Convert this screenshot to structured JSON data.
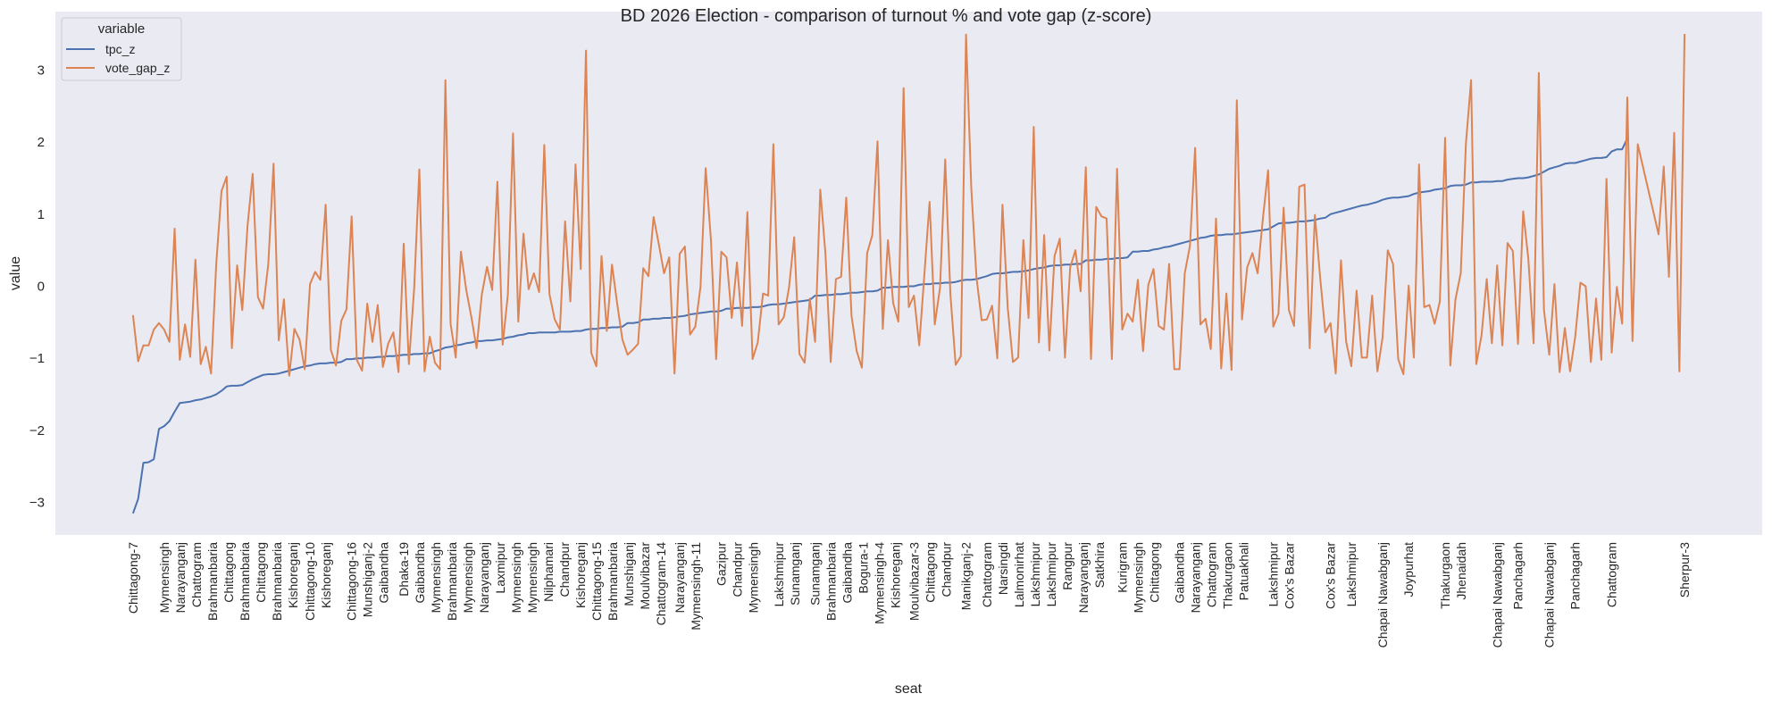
{
  "chart_data": {
    "type": "line",
    "title": "BD 2026 Election - comparison of turnout % and vote gap (z-score)",
    "xlabel": "seat",
    "ylabel": "value",
    "ylim": [
      -3.45,
      3.81
    ],
    "yticks": [
      3,
      2,
      1,
      0,
      -1,
      -2,
      -3
    ],
    "grid": false,
    "background": "#eaeaf2",
    "legend": {
      "title": "variable",
      "placement": "top-left"
    },
    "x_tick_labels": [
      {
        "i": 0,
        "label": "Chittagong-7"
      },
      {
        "i": 6,
        "label": "Mymensingh"
      },
      {
        "i": 8,
        "label": "Narayanganj"
      },
      {
        "i": 12,
        "label": "Chattogram"
      },
      {
        "i": 15,
        "label": "Brahmanbaria"
      },
      {
        "i": 18,
        "label": "Chittagong"
      },
      {
        "i": 21,
        "label": "Brahmanbaria"
      },
      {
        "i": 23,
        "label": "Chittagong"
      },
      {
        "i": 27,
        "label": "Brahmanbaria"
      },
      {
        "i": 29,
        "label": "Kishoreganj"
      },
      {
        "i": 34,
        "label": "Chittagong-10"
      },
      {
        "i": 37,
        "label": "Kishoreganj"
      },
      {
        "i": 42,
        "label": "Chittagong-16"
      },
      {
        "i": 45,
        "label": "Munshiganj-2"
      },
      {
        "i": 48,
        "label": "Gaibandha"
      },
      {
        "i": 52,
        "label": "Dhaka-19"
      },
      {
        "i": 55,
        "label": "Gaibandha"
      },
      {
        "i": 58,
        "label": "Mymensingh"
      },
      {
        "i": 60,
        "label": "Brahmanbaria"
      },
      {
        "i": 63,
        "label": "Mymensingh"
      },
      {
        "i": 66,
        "label": "Narayanganj"
      },
      {
        "i": 70,
        "label": "Laxmipur"
      },
      {
        "i": 72,
        "label": "Mymensingh"
      },
      {
        "i": 74,
        "label": "Mymensingh"
      },
      {
        "i": 75,
        "label": "Nilphamari"
      },
      {
        "i": 79,
        "label": "Chandpur"
      },
      {
        "i": 83,
        "label": "Kishoreganj"
      },
      {
        "i": 85,
        "label": "Chittagong-15"
      },
      {
        "i": 91,
        "label": "Brahmanbaria"
      },
      {
        "i": 94,
        "label": "Munshiganj"
      },
      {
        "i": 97,
        "label": "Moulvibazar"
      },
      {
        "i": 100,
        "label": "Chattogram-14"
      },
      {
        "i": 105,
        "label": "Narayanganj"
      },
      {
        "i": 108,
        "label": "Mymensingh-11"
      },
      {
        "i": 113,
        "label": "Gazipur"
      },
      {
        "i": 116,
        "label": "Chandpur"
      },
      {
        "i": 119,
        "label": "Mymensingh"
      },
      {
        "i": 124,
        "label": "Lakshmipur"
      },
      {
        "i": 127,
        "label": "Sunamganj"
      },
      {
        "i": 131,
        "label": "Sunamganj"
      },
      {
        "i": 134,
        "label": "Brahmanbaria"
      },
      {
        "i": 137,
        "label": "Gaibandha"
      },
      {
        "i": 139,
        "label": "Bogura-1"
      },
      {
        "i": 142,
        "label": "Mymensingh-4"
      },
      {
        "i": 146,
        "label": "Kishoreganj"
      },
      {
        "i": 150,
        "label": "Moulvibazar-3"
      },
      {
        "i": 153,
        "label": "Chittagong"
      },
      {
        "i": 156,
        "label": "Chandpur"
      },
      {
        "i": 160,
        "label": "Manikganj-2"
      },
      {
        "i": 164,
        "label": "Chattogram"
      },
      {
        "i": 167,
        "label": "Narsingdi"
      },
      {
        "i": 170,
        "label": "Lalmonirhat"
      },
      {
        "i": 173,
        "label": "Lakshmipur"
      },
      {
        "i": 175,
        "label": "Lakshmipur"
      },
      {
        "i": 178,
        "label": "Rangpur"
      },
      {
        "i": 181,
        "label": "Narayanganj"
      },
      {
        "i": 185,
        "label": "Satkhira"
      },
      {
        "i": 190,
        "label": "Kurigram"
      },
      {
        "i": 192,
        "label": "Mymensingh"
      },
      {
        "i": 195,
        "label": "Chittagong"
      },
      {
        "i": 201,
        "label": "Gaibandha"
      },
      {
        "i": 204,
        "label": "Narayanganj"
      },
      {
        "i": 207,
        "label": "Chattogram"
      },
      {
        "i": 210,
        "label": "Thakurgaon"
      },
      {
        "i": 212,
        "label": "Patuakhali"
      },
      {
        "i": 219,
        "label": "Lakshmipur"
      },
      {
        "i": 222,
        "label": "Cox's Bazar"
      },
      {
        "i": 230,
        "label": "Cox's Bazar"
      },
      {
        "i": 234,
        "label": "Lakshmipur"
      },
      {
        "i": 240,
        "label": "Chapai Nawabganj"
      },
      {
        "i": 245,
        "label": "Joypurhat"
      },
      {
        "i": 252,
        "label": "Thakurgaon"
      },
      {
        "i": 255,
        "label": "Jhenaidah"
      },
      {
        "i": 262,
        "label": "Chapai Nawabganj"
      },
      {
        "i": 266,
        "label": "Panchagarh"
      },
      {
        "i": 272,
        "label": "Chapai Nawabganj"
      },
      {
        "i": 277,
        "label": "Panchagarh"
      },
      {
        "i": 284,
        "label": "Chattogram"
      },
      {
        "i": 298,
        "label": "Sherpur-3"
      }
    ],
    "series": [
      {
        "name": "tpc_z",
        "color": "#4c72b0",
        "values": [
          -3.15,
          -2.95,
          -2.45,
          -2.44,
          -2.4,
          -1.98,
          -1.94,
          -1.87,
          -1.74,
          -1.62,
          -1.61,
          -1.6,
          -1.58,
          -1.57,
          -1.55,
          -1.53,
          -1.5,
          -1.45,
          -1.39,
          -1.38,
          -1.38,
          -1.37,
          -1.33,
          -1.29,
          -1.26,
          -1.23,
          -1.22,
          -1.22,
          -1.21,
          -1.19,
          -1.17,
          -1.15,
          -1.13,
          -1.11,
          -1.1,
          -1.08,
          -1.07,
          -1.07,
          -1.06,
          -1.06,
          -1.05,
          -1.01,
          -1.01,
          -1.0,
          -1.0,
          -0.99,
          -0.99,
          -0.98,
          -0.98,
          -0.97,
          -0.97,
          -0.96,
          -0.95,
          -0.95,
          -0.94,
          -0.94,
          -0.93,
          -0.93,
          -0.9,
          -0.88,
          -0.85,
          -0.84,
          -0.82,
          -0.81,
          -0.79,
          -0.78,
          -0.76,
          -0.76,
          -0.75,
          -0.75,
          -0.74,
          -0.73,
          -0.71,
          -0.7,
          -0.68,
          -0.67,
          -0.65,
          -0.65,
          -0.64,
          -0.64,
          -0.64,
          -0.64,
          -0.63,
          -0.63,
          -0.63,
          -0.62,
          -0.62,
          -0.6,
          -0.59,
          -0.59,
          -0.58,
          -0.58,
          -0.57,
          -0.57,
          -0.56,
          -0.51,
          -0.51,
          -0.5,
          -0.46,
          -0.46,
          -0.45,
          -0.45,
          -0.44,
          -0.44,
          -0.43,
          -0.42,
          -0.41,
          -0.39,
          -0.38,
          -0.37,
          -0.36,
          -0.35,
          -0.35,
          -0.34,
          -0.31,
          -0.31,
          -0.3,
          -0.3,
          -0.3,
          -0.29,
          -0.29,
          -0.28,
          -0.26,
          -0.25,
          -0.25,
          -0.24,
          -0.23,
          -0.22,
          -0.21,
          -0.2,
          -0.19,
          -0.13,
          -0.13,
          -0.12,
          -0.12,
          -0.11,
          -0.11,
          -0.1,
          -0.09,
          -0.09,
          -0.08,
          -0.07,
          -0.07,
          -0.06,
          -0.02,
          -0.02,
          -0.01,
          -0.01,
          -0.01,
          0.0,
          0.0,
          0.02,
          0.03,
          0.03,
          0.04,
          0.04,
          0.05,
          0.05,
          0.06,
          0.08,
          0.09,
          0.09,
          0.1,
          0.12,
          0.14,
          0.17,
          0.18,
          0.18,
          0.19,
          0.2,
          0.2,
          0.21,
          0.22,
          0.24,
          0.25,
          0.26,
          0.28,
          0.29,
          0.29,
          0.3,
          0.3,
          0.31,
          0.31,
          0.36,
          0.36,
          0.37,
          0.37,
          0.38,
          0.38,
          0.39,
          0.39,
          0.4,
          0.48,
          0.48,
          0.49,
          0.49,
          0.51,
          0.52,
          0.54,
          0.55,
          0.57,
          0.59,
          0.61,
          0.63,
          0.65,
          0.67,
          0.68,
          0.7,
          0.71,
          0.71,
          0.72,
          0.72,
          0.73,
          0.74,
          0.75,
          0.76,
          0.77,
          0.78,
          0.79,
          0.83,
          0.87,
          0.88,
          0.88,
          0.89,
          0.9,
          0.9,
          0.91,
          0.92,
          0.94,
          0.95,
          1.0,
          1.02,
          1.04,
          1.06,
          1.08,
          1.1,
          1.12,
          1.13,
          1.15,
          1.17,
          1.2,
          1.22,
          1.23,
          1.23,
          1.24,
          1.25,
          1.28,
          1.3,
          1.31,
          1.32,
          1.34,
          1.35,
          1.36,
          1.39,
          1.4,
          1.4,
          1.41,
          1.44,
          1.44,
          1.45,
          1.45,
          1.45,
          1.46,
          1.46,
          1.48,
          1.49,
          1.5,
          1.5,
          1.51,
          1.53,
          1.55,
          1.59,
          1.63,
          1.65,
          1.67,
          1.7,
          1.71,
          1.71,
          1.73,
          1.75,
          1.77,
          1.78,
          1.78,
          1.79,
          1.87,
          1.9,
          1.9,
          2.05,
          null,
          null,
          null,
          null,
          null,
          null,
          null,
          null,
          null,
          null,
          null
        ]
      },
      {
        "name": "vote_gap_z",
        "color": "#dd8452",
        "values": [
          -0.4,
          -1.04,
          -0.82,
          -0.82,
          -0.6,
          -0.51,
          -0.6,
          -0.77,
          0.8,
          -1.02,
          -0.53,
          -0.98,
          0.37,
          -1.08,
          -0.84,
          -1.21,
          0.31,
          1.32,
          1.52,
          -0.86,
          0.29,
          -0.33,
          0.83,
          1.56,
          -0.15,
          -0.31,
          0.31,
          1.7,
          -0.75,
          -0.18,
          -1.24,
          -0.59,
          -0.74,
          -1.15,
          0.03,
          0.2,
          0.09,
          1.13,
          -0.88,
          -1.1,
          -0.48,
          -0.32,
          0.97,
          -1.02,
          -1.17,
          -0.24,
          -0.77,
          -0.26,
          -1.12,
          -0.8,
          -0.64,
          -1.19,
          0.59,
          -1.08,
          -0.03,
          1.62,
          -1.18,
          -0.7,
          -1.06,
          -1.15,
          2.86,
          -0.52,
          -0.99,
          0.48,
          -0.05,
          -0.43,
          -0.86,
          -0.11,
          0.27,
          -0.05,
          1.45,
          -0.81,
          -0.12,
          2.12,
          -0.49,
          0.73,
          -0.04,
          0.18,
          -0.08,
          1.96,
          -0.11,
          -0.46,
          -0.6,
          0.9,
          -0.21,
          1.69,
          0.24,
          3.27,
          -0.92,
          -1.11,
          0.42,
          -0.62,
          0.3,
          -0.24,
          -0.74,
          -0.95,
          -0.88,
          -0.8,
          0.25,
          0.14,
          0.96,
          0.58,
          0.18,
          0.4,
          -1.21,
          0.45,
          0.55,
          -0.67,
          -0.56,
          -0.01,
          1.64,
          0.64,
          -1.01,
          0.48,
          0.4,
          -0.44,
          0.33,
          -0.55,
          1.03,
          -1.01,
          -0.78,
          -0.1,
          -0.13,
          1.97,
          -0.53,
          -0.43,
          -0.02,
          0.68,
          -0.94,
          -1.06,
          -0.17,
          -0.77,
          1.34,
          0.45,
          -1.05,
          0.1,
          0.13,
          1.23,
          -0.41,
          -0.9,
          -1.13,
          0.46,
          0.71,
          2.01,
          -0.59,
          0.64,
          -0.23,
          -0.49,
          2.75,
          -0.29,
          -0.13,
          -0.82,
          0.17,
          1.17,
          -0.53,
          -0.02,
          1.76,
          -0.11,
          -1.09,
          -0.97,
          3.49,
          1.36,
          0.12,
          -0.47,
          -0.46,
          -0.27,
          -1.0,
          1.13,
          -0.3,
          -1.05,
          -0.99,
          0.64,
          -0.44,
          2.21,
          -0.78,
          0.71,
          -0.89,
          0.42,
          0.66,
          -0.99,
          0.26,
          0.5,
          -0.07,
          1.65,
          -1.01,
          1.1,
          0.97,
          0.94,
          -1.01,
          1.63,
          -0.6,
          -0.38,
          -0.49,
          0.09,
          -0.9,
          0.02,
          0.24,
          -0.55,
          -0.6,
          0.31,
          -1.15,
          -1.15,
          0.18,
          0.56,
          1.92,
          -0.53,
          -0.45,
          -0.87,
          0.94,
          -1.14,
          -0.1,
          -1.16,
          2.58,
          -0.46,
          0.26,
          0.46,
          0.18,
          0.93,
          1.61,
          -0.56,
          -0.38,
          1.09,
          -0.33,
          -0.55,
          1.38,
          1.41,
          -0.86,
          0.99,
          0.12,
          -0.64,
          -0.51,
          -1.21,
          0.36,
          -0.77,
          -1.11,
          -0.06,
          -0.99,
          -0.99,
          -0.13,
          -1.18,
          -0.71,
          0.5,
          0.31,
          -1.01,
          -1.22,
          0.01,
          -0.99,
          1.69,
          -0.29,
          -0.26,
          -0.52,
          -0.21,
          2.06,
          -1.1,
          -0.18,
          0.18,
          1.98,
          2.86,
          -1.08,
          -0.68,
          0.1,
          -0.79,
          0.29,
          -0.82,
          0.6,
          0.49,
          -0.8,
          1.04,
          0.38,
          -0.79,
          2.96,
          -0.33,
          -0.95,
          0.03,
          -1.19,
          -0.58,
          -1.18,
          -0.7,
          0.05,
          0.0,
          -1.05,
          -0.17,
          -1.02,
          1.49,
          -0.92,
          -0.01,
          -0.52,
          2.62,
          -0.76,
          1.97,
          null,
          null,
          null,
          0.72,
          1.66,
          0.13,
          2.13,
          -1.18,
          3.5
        ]
      }
    ]
  }
}
